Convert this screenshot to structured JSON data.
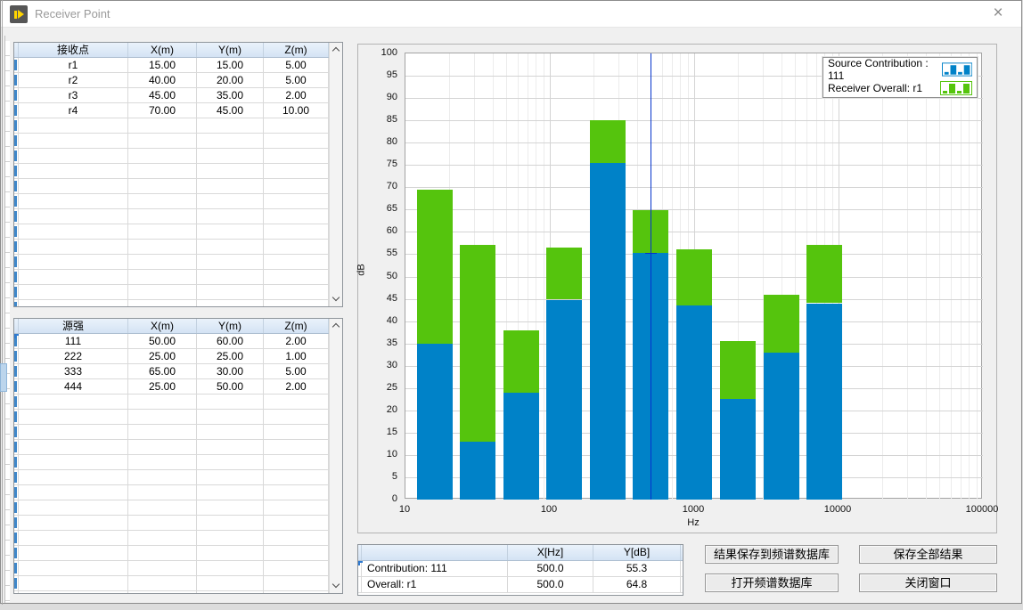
{
  "window": {
    "title": "Receiver Point",
    "close_glyph": "×"
  },
  "receiver_table": {
    "headers": [
      "接收点",
      "X(m)",
      "Y(m)",
      "Z(m)"
    ],
    "rows": [
      [
        "r1",
        "15.00",
        "15.00",
        "5.00"
      ],
      [
        "r2",
        "40.00",
        "20.00",
        "5.00"
      ],
      [
        "r3",
        "45.00",
        "35.00",
        "2.00"
      ],
      [
        "r4",
        "70.00",
        "45.00",
        "10.00"
      ]
    ],
    "visible_empty_rows": 13
  },
  "source_table": {
    "headers": [
      "源强",
      "X(m)",
      "Y(m)",
      "Z(m)"
    ],
    "rows": [
      [
        "111",
        "50.00",
        "60.00",
        "2.00"
      ],
      [
        "222",
        "25.00",
        "25.00",
        "1.00"
      ],
      [
        "333",
        "65.00",
        "30.00",
        "5.00"
      ],
      [
        "444",
        "25.00",
        "50.00",
        "2.00"
      ]
    ],
    "visible_empty_rows": 14,
    "selected_cell": {
      "row": 0,
      "col": 1
    }
  },
  "chart_data": {
    "type": "bar",
    "stacked": true,
    "x_scale": "log",
    "xlabel": "Hz",
    "ylabel": "dB",
    "xlim": [
      10,
      100000
    ],
    "ylim": [
      0,
      100
    ],
    "y_tick_step": 5,
    "x_ticks": [
      10,
      100,
      1000,
      10000,
      100000
    ],
    "x": [
      16,
      31.5,
      63,
      125,
      250,
      500,
      1000,
      2000,
      4000,
      8000
    ],
    "series": [
      {
        "name": "Source Contribution : 111",
        "color": "#0082C8",
        "values": [
          35.0,
          13.0,
          24.0,
          44.8,
          75.5,
          55.3,
          43.5,
          22.5,
          33.0,
          44.0
        ]
      },
      {
        "name": "Receiver Overall: r1",
        "color": "#55C40D",
        "values": [
          69.5,
          57.0,
          38.0,
          56.5,
          85.0,
          64.8,
          56.0,
          35.5,
          46.0,
          57.0
        ]
      }
    ],
    "legend_position": "top-right",
    "grid": true,
    "cursor": {
      "x": 500,
      "y": 55.3,
      "color": "#0433CC"
    }
  },
  "cursor_table": {
    "headers": [
      "",
      "X[Hz]",
      "Y[dB]"
    ],
    "rows": [
      [
        "Contribution: 111",
        "500.0",
        "55.3"
      ],
      [
        "Overall: r1",
        "500.0",
        "64.8"
      ]
    ],
    "selected_cell": {
      "row": 0,
      "col": 0
    }
  },
  "buttons": {
    "save_to_db": "结果保存到频谱数据库",
    "save_all": "保存全部结果",
    "open_db": "打开频谱数据库",
    "close_window": "关闭窗口"
  },
  "colors": {
    "bar_blue": "#0082C8",
    "bar_green": "#55C40D",
    "cursor_blue": "#0433CC",
    "table_header_bg": "#d9e6f4",
    "row_mark_blue": "#3f87c9"
  }
}
